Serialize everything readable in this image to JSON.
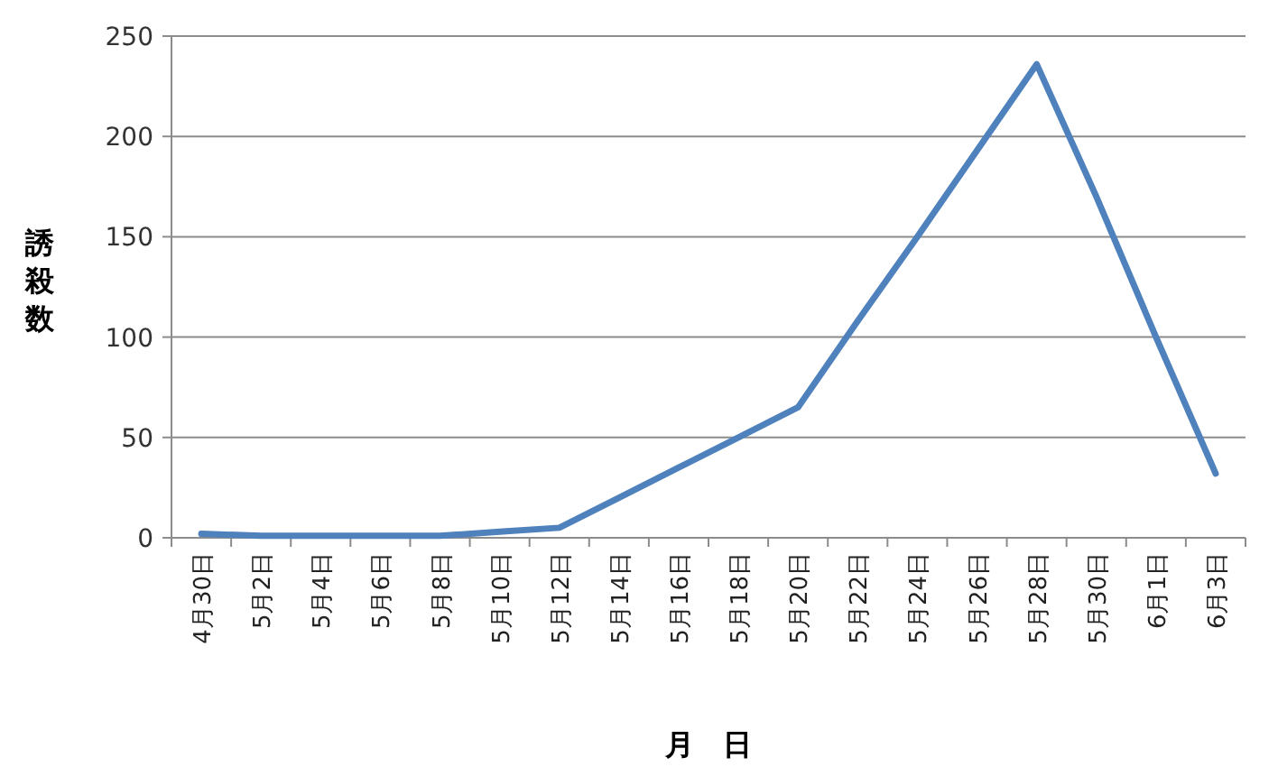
{
  "chart_data": {
    "type": "line",
    "xlabel": "月　日",
    "ylabel": "誘殺数",
    "categories": [
      "4月30日",
      "5月2日",
      "5月4日",
      "5月6日",
      "5月8日",
      "5月10日",
      "5月12日",
      "5月14日",
      "5月16日",
      "5月18日",
      "5月20日",
      "5月22日",
      "5月24日",
      "5月26日",
      "5月28日",
      "5月30日",
      "6月1日",
      "6月3日"
    ],
    "series": [
      {
        "color": "#4f81bd",
        "values": [
          2,
          1,
          1,
          1,
          1,
          3,
          5,
          20,
          35,
          50,
          65,
          108,
          150,
          193,
          236,
          170,
          100,
          32
        ]
      }
    ],
    "ylim": [
      0,
      250
    ],
    "yticks": [
      0,
      50,
      100,
      150,
      200,
      250
    ],
    "grid": "y",
    "marker": "none",
    "line_style": "solid"
  }
}
